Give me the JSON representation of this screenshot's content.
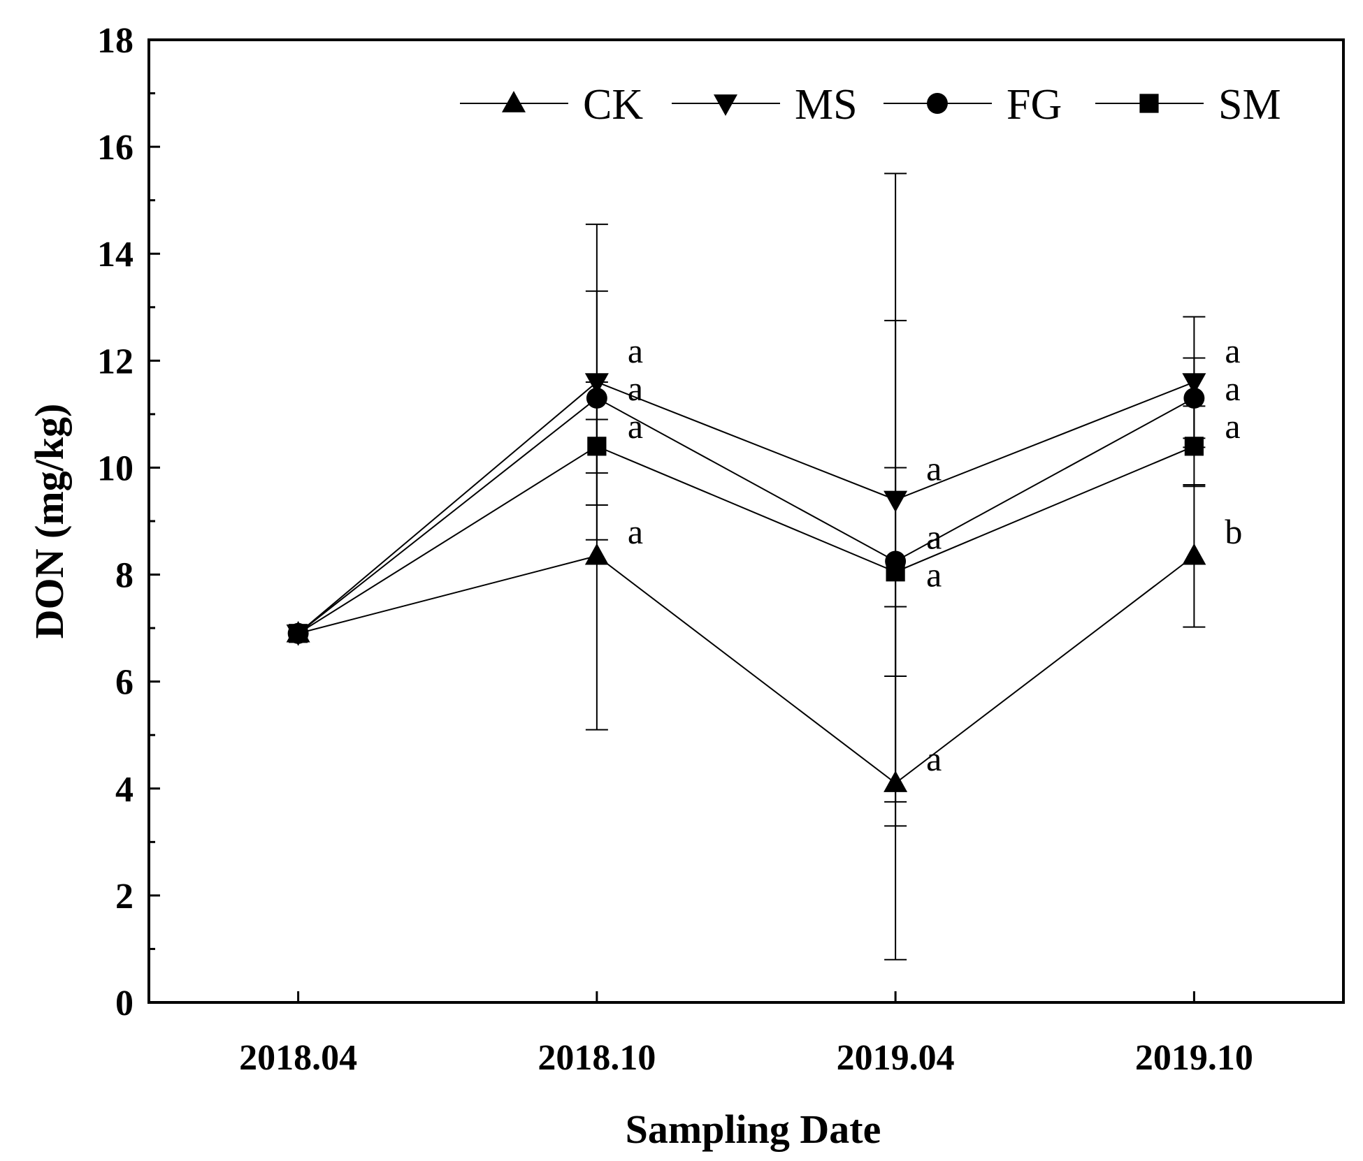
{
  "chart_data": {
    "type": "line",
    "xlabel": "Sampling Date",
    "ylabel": "DON (mg/kg)",
    "categories": [
      "2018.04",
      "2018.10",
      "2019.04",
      "2019.10"
    ],
    "ylim": [
      0,
      18
    ],
    "yticks": [
      0,
      2,
      4,
      6,
      8,
      10,
      12,
      14,
      16,
      18
    ],
    "grid": false,
    "legend_position": "top-right",
    "series": [
      {
        "name": "CK",
        "marker": "triangle-up",
        "values": [
          6.9,
          8.35,
          4.1,
          8.35
        ],
        "error": [
          null,
          3.25,
          3.3,
          1.33
        ],
        "sig": [
          null,
          "a",
          "a",
          "b"
        ]
      },
      {
        "name": "MS",
        "marker": "triangle-down",
        "values": [
          6.9,
          11.6,
          9.4,
          11.6
        ],
        "error": [
          null,
          2.95,
          6.1,
          1.22
        ],
        "sig": [
          null,
          "a",
          "a",
          "a"
        ]
      },
      {
        "name": "FG",
        "marker": "circle",
        "values": [
          6.9,
          11.3,
          8.25,
          11.3
        ],
        "error": [
          null,
          2.0,
          4.5,
          0.75
        ],
        "sig": [
          null,
          "a",
          "a",
          "a"
        ]
      },
      {
        "name": "SM",
        "marker": "square",
        "values": [
          6.9,
          10.4,
          8.05,
          10.4
        ],
        "error": [
          null,
          0.5,
          1.95,
          0.75
        ],
        "sig": [
          null,
          "a",
          "a",
          "a"
        ]
      }
    ]
  }
}
